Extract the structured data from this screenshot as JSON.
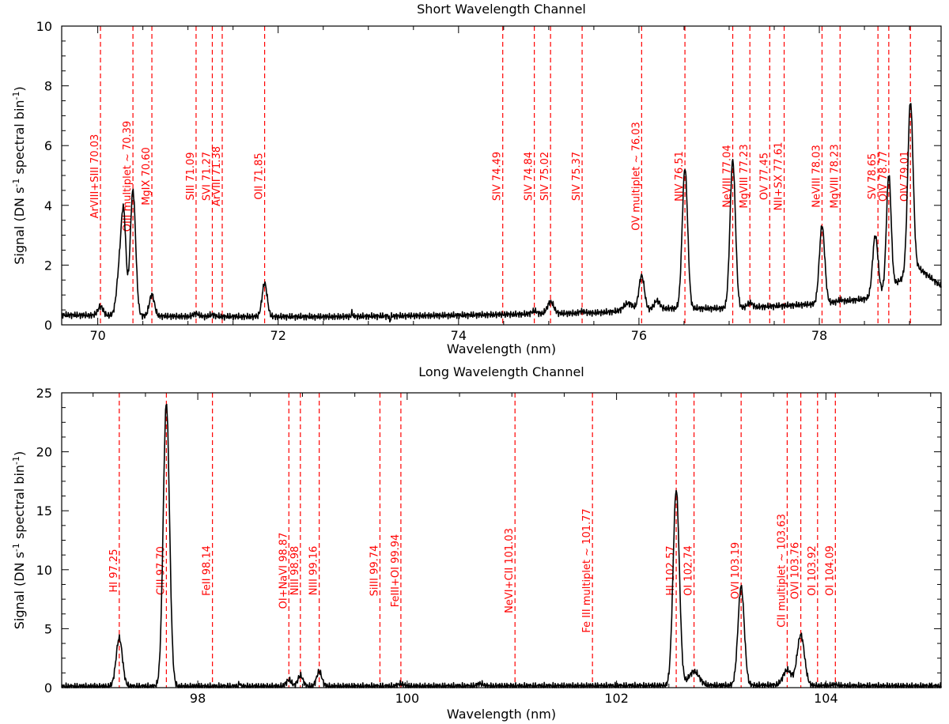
{
  "chart_data": [
    {
      "type": "line",
      "title": "Short Wavelength Channel",
      "xlabel": "Wavelength (nm)",
      "ylabel_parts": [
        "Signal (DN s",
        "-1",
        " spectral bin",
        "-1",
        ")"
      ],
      "xlim": [
        69.6,
        79.35
      ],
      "ylim": [
        0,
        10
      ],
      "xticks": [
        70,
        72,
        74,
        76,
        78
      ],
      "yticks": [
        0,
        2,
        4,
        6,
        8,
        10
      ],
      "grid": false,
      "series": [
        {
          "color": "#000000",
          "baseline": [
            [
              69.6,
              0.33
            ],
            [
              71.0,
              0.28
            ],
            [
              72.5,
              0.27
            ],
            [
              74.0,
              0.32
            ],
            [
              75.5,
              0.4
            ],
            [
              76.3,
              0.55
            ],
            [
              77.0,
              0.55
            ],
            [
              78.0,
              0.7
            ],
            [
              78.6,
              0.9
            ],
            [
              79.1,
              1.9
            ],
            [
              79.35,
              1.3
            ]
          ],
          "peaks": [
            {
              "center": 70.03,
              "amp": 0.3,
              "width": 0.03
            },
            {
              "center": 70.25,
              "amp": 1.8,
              "width": 0.035
            },
            {
              "center": 70.29,
              "amp": 2.6,
              "width": 0.025
            },
            {
              "center": 70.39,
              "amp": 4.2,
              "width": 0.03
            },
            {
              "center": 70.6,
              "amp": 0.72,
              "width": 0.028
            },
            {
              "center": 71.09,
              "amp": 0.1,
              "width": 0.03
            },
            {
              "center": 71.27,
              "amp": 0.06,
              "width": 0.03
            },
            {
              "center": 71.85,
              "amp": 1.12,
              "width": 0.028
            },
            {
              "center": 72.82,
              "amp": 0.15,
              "width": 0.006
            },
            {
              "center": 73.24,
              "amp": -0.18,
              "width": 0.006
            },
            {
              "center": 74.84,
              "amp": 0.1,
              "width": 0.03
            },
            {
              "center": 75.02,
              "amp": 0.4,
              "width": 0.035
            },
            {
              "center": 75.37,
              "amp": 0.06,
              "width": 0.03
            },
            {
              "center": 75.88,
              "amp": 0.25,
              "width": 0.05
            },
            {
              "center": 76.03,
              "amp": 1.15,
              "width": 0.03
            },
            {
              "center": 76.2,
              "amp": 0.28,
              "width": 0.03
            },
            {
              "center": 76.51,
              "amp": 4.7,
              "width": 0.03
            },
            {
              "center": 77.04,
              "amp": 4.95,
              "width": 0.03
            },
            {
              "center": 77.23,
              "amp": 0.15,
              "width": 0.03
            },
            {
              "center": 78.03,
              "amp": 2.6,
              "width": 0.03
            },
            {
              "center": 78.23,
              "amp": 0.05,
              "width": 0.03
            },
            {
              "center": 78.62,
              "amp": 2.05,
              "width": 0.03
            },
            {
              "center": 78.77,
              "amp": 3.8,
              "width": 0.026
            },
            {
              "center": 79.01,
              "amp": 5.75,
              "width": 0.03
            }
          ]
        }
      ],
      "annotations": [
        {
          "x": 70.03,
          "label": "ArVIII+SIII 70.03"
        },
        {
          "x": 70.39,
          "label": "OIII multiplet ~ 70.39"
        },
        {
          "x": 70.6,
          "label": "MgIX 70.60"
        },
        {
          "x": 71.09,
          "label": "SIII 71.09"
        },
        {
          "x": 71.27,
          "label": "SVI 71.27"
        },
        {
          "x": 71.38,
          "label": "ArVIII 71.38"
        },
        {
          "x": 71.85,
          "label": "OII 71.85"
        },
        {
          "x": 74.49,
          "label": "SIV 74.49"
        },
        {
          "x": 74.84,
          "label": "SIV 74.84"
        },
        {
          "x": 75.02,
          "label": "SIV 75.02"
        },
        {
          "x": 75.37,
          "label": "SIV 75.37"
        },
        {
          "x": 76.03,
          "label": "OV multiplet ~ 76.03"
        },
        {
          "x": 76.51,
          "label": "NIV 76.51"
        },
        {
          "x": 77.04,
          "label": "NeVIII 77.04"
        },
        {
          "x": 77.23,
          "label": "MgVIII 77.23"
        },
        {
          "x": 77.45,
          "label": "OV 77.45"
        },
        {
          "x": 77.61,
          "label": "NII+SX 77.61"
        },
        {
          "x": 78.03,
          "label": "NeVIII 78.03"
        },
        {
          "x": 78.23,
          "label": "MgVIII 78.23"
        },
        {
          "x": 78.65,
          "label": "SV 78.65"
        },
        {
          "x": 78.77,
          "label": "OIV 78.77"
        },
        {
          "x": 79.01,
          "label": "OIV 79.01"
        }
      ]
    },
    {
      "type": "line",
      "title": "Long Wavelength Channel",
      "xlabel": "Wavelength (nm)",
      "ylabel_parts": [
        "Signal (DN s",
        "-1",
        " spectral bin",
        "-1",
        ")"
      ],
      "xlim": [
        96.7,
        105.1
      ],
      "ylim": [
        0,
        25
      ],
      "xticks": [
        98,
        100,
        102,
        104
      ],
      "yticks": [
        0,
        5,
        10,
        15,
        20,
        25
      ],
      "grid": false,
      "series": [
        {
          "color": "#000000",
          "baseline": [
            [
              96.7,
              0.1
            ],
            [
              100.0,
              0.12
            ],
            [
              102.0,
              0.15
            ],
            [
              103.5,
              0.2
            ],
            [
              104.2,
              0.15
            ],
            [
              105.1,
              0.12
            ]
          ],
          "peaks": [
            {
              "center": 97.25,
              "amp": 4.1,
              "width": 0.03
            },
            {
              "center": 97.7,
              "amp": 24.0,
              "width": 0.03
            },
            {
              "center": 98.4,
              "amp": 0.25,
              "width": 0.008
            },
            {
              "center": 98.87,
              "amp": 0.55,
              "width": 0.025
            },
            {
              "center": 98.98,
              "amp": 0.9,
              "width": 0.025
            },
            {
              "center": 99.16,
              "amp": 1.25,
              "width": 0.025
            },
            {
              "center": 99.94,
              "amp": 0.2,
              "width": 0.03
            },
            {
              "center": 100.7,
              "amp": 0.2,
              "width": 0.03
            },
            {
              "center": 102.57,
              "amp": 16.6,
              "width": 0.03
            },
            {
              "center": 102.74,
              "amp": 1.2,
              "width": 0.05
            },
            {
              "center": 103.19,
              "amp": 8.4,
              "width": 0.03
            },
            {
              "center": 103.63,
              "amp": 1.3,
              "width": 0.04
            },
            {
              "center": 103.76,
              "amp": 4.3,
              "width": 0.035
            },
            {
              "center": 104.09,
              "amp": 0.1,
              "width": 0.03
            }
          ]
        }
      ],
      "annotations": [
        {
          "x": 97.25,
          "label": "HI 97.25"
        },
        {
          "x": 97.7,
          "label": "CIII 97.70"
        },
        {
          "x": 98.14,
          "label": "FeII 98.14"
        },
        {
          "x": 98.87,
          "label": "OI+NaVI 98.87"
        },
        {
          "x": 98.98,
          "label": "NIII 98.98"
        },
        {
          "x": 99.16,
          "label": "NIII 99.16"
        },
        {
          "x": 99.74,
          "label": "SiIII 99.74"
        },
        {
          "x": 99.94,
          "label": "FeIII+OI 99.94"
        },
        {
          "x": 101.03,
          "label": "NeVI+CII 101.03"
        },
        {
          "x": 101.77,
          "label": "Fe III multiplet ~ 101.77"
        },
        {
          "x": 102.57,
          "label": "HI 102.57"
        },
        {
          "x": 102.74,
          "label": "OI 102.74"
        },
        {
          "x": 103.19,
          "label": "OVI 103.19"
        },
        {
          "x": 103.63,
          "label": "CII multiplet ~ 103.63"
        },
        {
          "x": 103.76,
          "label": "OVI 103.76"
        },
        {
          "x": 103.92,
          "label": "OI 103.92"
        },
        {
          "x": 104.09,
          "label": "OI 104.09"
        }
      ]
    }
  ],
  "colors": {
    "spectrum": "#000000",
    "line_marker": "#ff0000",
    "label": "#ff0000",
    "axes": "#000000"
  }
}
